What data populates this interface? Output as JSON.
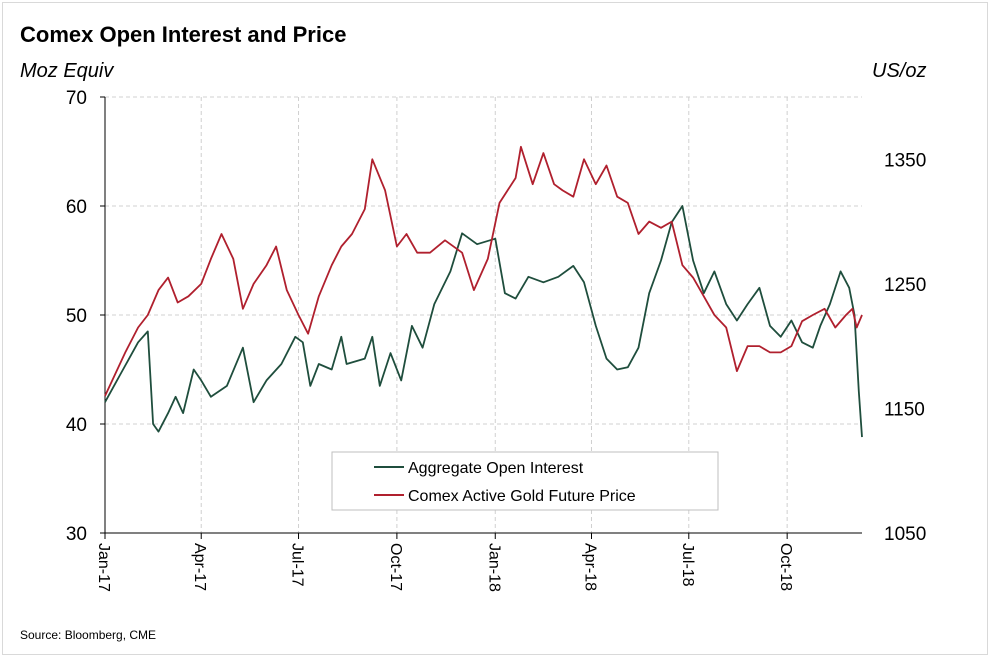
{
  "chart_data": {
    "type": "line",
    "title": "Comex Open Interest and Price",
    "ylabel_left": "Moz Equiv",
    "ylabel_right": "US/oz",
    "source": "Source: Bloomberg, CME",
    "y_left_ticks": [
      "70",
      "60",
      "50",
      "40",
      "30"
    ],
    "y_right_ticks": [
      "1350",
      "1250",
      "1150",
      "1050"
    ],
    "x_ticks": [
      "Jan-17",
      "Apr-17",
      "Jul-17",
      "Oct-17",
      "Jan-18",
      "Apr-18",
      "Jul-18",
      "Oct-18"
    ],
    "y_left_range": [
      30,
      70
    ],
    "y_right_range": [
      1050,
      1400
    ],
    "x_range": [
      "2017-01-01",
      "2018-12-10"
    ],
    "grid": true,
    "legend_placement": "bottom-center",
    "series": [
      {
        "name": "Aggregate Open Interest",
        "axis": "left",
        "color": "#1f4e3d",
        "points": [
          [
            "2017-01-01",
            42.0
          ],
          [
            "2017-01-15",
            44.5
          ],
          [
            "2017-02-01",
            47.5
          ],
          [
            "2017-02-10",
            48.5
          ],
          [
            "2017-02-15",
            40.0
          ],
          [
            "2017-02-20",
            39.3
          ],
          [
            "2017-03-01",
            41.0
          ],
          [
            "2017-03-08",
            42.5
          ],
          [
            "2017-03-15",
            41.0
          ],
          [
            "2017-03-25",
            45.0
          ],
          [
            "2017-04-01",
            44.0
          ],
          [
            "2017-04-10",
            42.5
          ],
          [
            "2017-04-25",
            43.5
          ],
          [
            "2017-05-10",
            47.0
          ],
          [
            "2017-05-20",
            42.0
          ],
          [
            "2017-06-01",
            44.0
          ],
          [
            "2017-06-15",
            45.5
          ],
          [
            "2017-06-28",
            48.0
          ],
          [
            "2017-07-05",
            47.5
          ],
          [
            "2017-07-12",
            43.5
          ],
          [
            "2017-07-20",
            45.5
          ],
          [
            "2017-08-01",
            45.0
          ],
          [
            "2017-08-10",
            48.0
          ],
          [
            "2017-08-15",
            45.5
          ],
          [
            "2017-09-01",
            46.0
          ],
          [
            "2017-09-08",
            48.0
          ],
          [
            "2017-09-15",
            43.5
          ],
          [
            "2017-09-25",
            46.5
          ],
          [
            "2017-10-05",
            44.0
          ],
          [
            "2017-10-15",
            49.0
          ],
          [
            "2017-10-25",
            47.0
          ],
          [
            "2017-11-05",
            51.0
          ],
          [
            "2017-11-20",
            54.0
          ],
          [
            "2017-12-01",
            57.5
          ],
          [
            "2017-12-15",
            56.5
          ],
          [
            "2018-01-01",
            57.0
          ],
          [
            "2018-01-10",
            52.0
          ],
          [
            "2018-01-20",
            51.5
          ],
          [
            "2018-02-01",
            53.5
          ],
          [
            "2018-02-15",
            53.0
          ],
          [
            "2018-03-01",
            53.5
          ],
          [
            "2018-03-15",
            54.5
          ],
          [
            "2018-03-25",
            53.0
          ],
          [
            "2018-04-05",
            49.0
          ],
          [
            "2018-04-15",
            46.0
          ],
          [
            "2018-04-25",
            45.0
          ],
          [
            "2018-05-05",
            45.2
          ],
          [
            "2018-05-15",
            47.0
          ],
          [
            "2018-05-25",
            52.0
          ],
          [
            "2018-06-05",
            55.0
          ],
          [
            "2018-06-15",
            58.5
          ],
          [
            "2018-06-25",
            60.0
          ],
          [
            "2018-07-05",
            55.0
          ],
          [
            "2018-07-15",
            52.0
          ],
          [
            "2018-07-25",
            54.0
          ],
          [
            "2018-08-05",
            51.0
          ],
          [
            "2018-08-15",
            49.5
          ],
          [
            "2018-08-25",
            51.0
          ],
          [
            "2018-09-05",
            52.5
          ],
          [
            "2018-09-15",
            49.0
          ],
          [
            "2018-09-25",
            48.0
          ],
          [
            "2018-10-05",
            49.5
          ],
          [
            "2018-10-15",
            47.5
          ],
          [
            "2018-10-25",
            47.0
          ],
          [
            "2018-11-01",
            49.0
          ],
          [
            "2018-11-10",
            51.0
          ],
          [
            "2018-11-20",
            54.0
          ],
          [
            "2018-11-28",
            52.5
          ],
          [
            "2018-12-03",
            50.0
          ],
          [
            "2018-12-07",
            43.0
          ],
          [
            "2018-12-10",
            38.8
          ]
        ]
      },
      {
        "name": "Comex Active Gold  Future Price",
        "axis": "right",
        "color": "#b0202e",
        "points": [
          [
            "2017-01-01",
            1160
          ],
          [
            "2017-01-20",
            1195
          ],
          [
            "2017-02-01",
            1215
          ],
          [
            "2017-02-10",
            1225
          ],
          [
            "2017-02-20",
            1245
          ],
          [
            "2017-03-01",
            1255
          ],
          [
            "2017-03-10",
            1235
          ],
          [
            "2017-03-20",
            1240
          ],
          [
            "2017-04-01",
            1250
          ],
          [
            "2017-04-10",
            1270
          ],
          [
            "2017-04-20",
            1290
          ],
          [
            "2017-05-01",
            1270
          ],
          [
            "2017-05-10",
            1230
          ],
          [
            "2017-05-20",
            1250
          ],
          [
            "2017-06-01",
            1265
          ],
          [
            "2017-06-10",
            1280
          ],
          [
            "2017-06-20",
            1245
          ],
          [
            "2017-07-01",
            1225
          ],
          [
            "2017-07-10",
            1210
          ],
          [
            "2017-07-20",
            1240
          ],
          [
            "2017-08-01",
            1265
          ],
          [
            "2017-08-10",
            1280
          ],
          [
            "2017-08-20",
            1290
          ],
          [
            "2017-09-01",
            1310
          ],
          [
            "2017-09-08",
            1350
          ],
          [
            "2017-09-20",
            1325
          ],
          [
            "2017-10-01",
            1280
          ],
          [
            "2017-10-10",
            1290
          ],
          [
            "2017-10-20",
            1275
          ],
          [
            "2017-11-01",
            1275
          ],
          [
            "2017-11-15",
            1285
          ],
          [
            "2017-12-01",
            1275
          ],
          [
            "2017-12-12",
            1245
          ],
          [
            "2017-12-25",
            1270
          ],
          [
            "2018-01-05",
            1315
          ],
          [
            "2018-01-20",
            1335
          ],
          [
            "2018-01-25",
            1360
          ],
          [
            "2018-02-05",
            1330
          ],
          [
            "2018-02-15",
            1355
          ],
          [
            "2018-02-25",
            1330
          ],
          [
            "2018-03-05",
            1325
          ],
          [
            "2018-03-15",
            1320
          ],
          [
            "2018-03-25",
            1350
          ],
          [
            "2018-04-05",
            1330
          ],
          [
            "2018-04-15",
            1345
          ],
          [
            "2018-04-25",
            1320
          ],
          [
            "2018-05-05",
            1315
          ],
          [
            "2018-05-15",
            1290
          ],
          [
            "2018-05-25",
            1300
          ],
          [
            "2018-06-05",
            1295
          ],
          [
            "2018-06-15",
            1300
          ],
          [
            "2018-06-25",
            1265
          ],
          [
            "2018-07-05",
            1255
          ],
          [
            "2018-07-15",
            1240
          ],
          [
            "2018-07-25",
            1225
          ],
          [
            "2018-08-05",
            1215
          ],
          [
            "2018-08-15",
            1180
          ],
          [
            "2018-08-25",
            1200
          ],
          [
            "2018-09-05",
            1200
          ],
          [
            "2018-09-15",
            1195
          ],
          [
            "2018-09-25",
            1195
          ],
          [
            "2018-10-05",
            1200
          ],
          [
            "2018-10-15",
            1220
          ],
          [
            "2018-10-25",
            1225
          ],
          [
            "2018-11-05",
            1230
          ],
          [
            "2018-11-15",
            1215
          ],
          [
            "2018-11-25",
            1225
          ],
          [
            "2018-12-01",
            1230
          ],
          [
            "2018-12-05",
            1215
          ],
          [
            "2018-12-10",
            1225
          ]
        ]
      }
    ]
  }
}
